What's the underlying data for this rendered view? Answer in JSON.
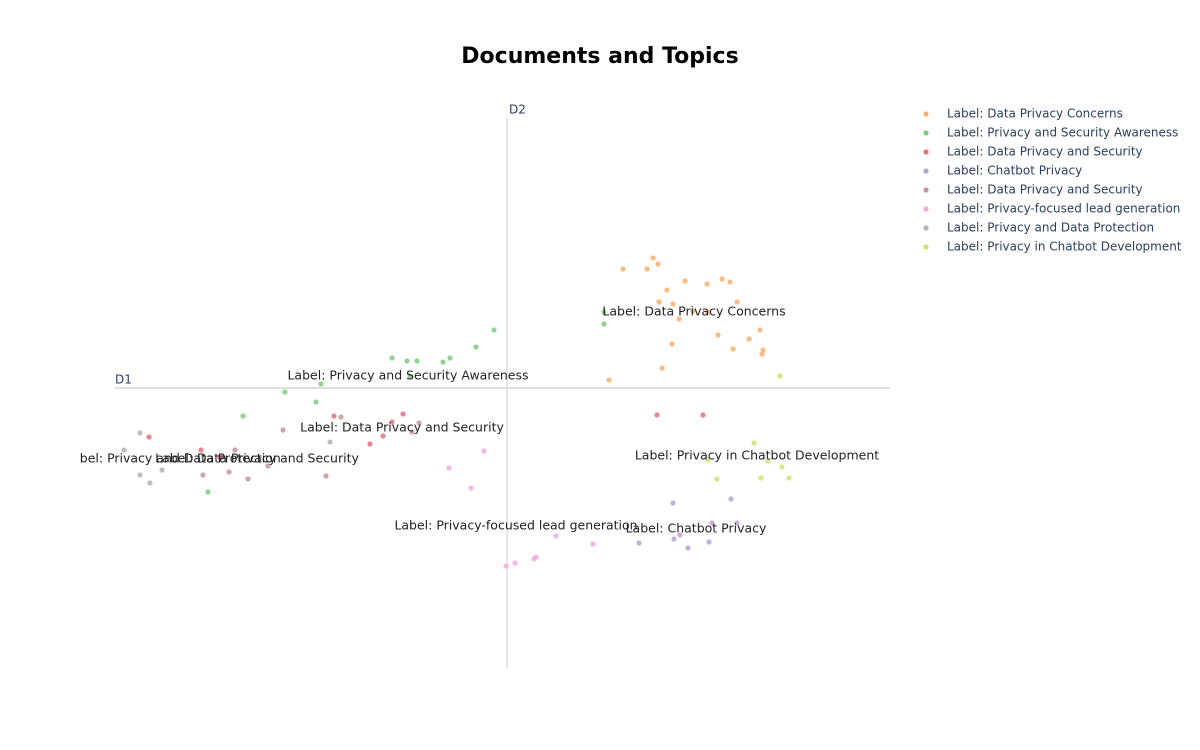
{
  "chart_data": {
    "type": "scatter",
    "title": "Documents and Topics",
    "x_label": "D1",
    "y_label": "D2",
    "xlim": [
      -392,
      383
    ],
    "ylim": [
      -280,
      270
    ],
    "series": [
      {
        "name": "Label: Data Privacy Concerns",
        "color": "#fdae6b",
        "x": [
          116,
          140,
          146,
          151,
          160,
          178,
          200,
          215,
          223,
          230,
          152,
          166,
          172,
          186,
          201,
          211,
          226,
          242,
          253,
          256,
          255,
          165,
          155,
          102
        ],
        "y": [
          119,
          119,
          130,
          124,
          98,
          107,
          104,
          109,
          106,
          86,
          86,
          84,
          69,
          77,
          76,
          53,
          39,
          49,
          58,
          38,
          34,
          44,
          20,
          8
        ]
      },
      {
        "name": "Label: Privacy and Security Awareness",
        "color": "#7fcb7f",
        "x": [
          97,
          97,
          -13,
          -31,
          -57,
          -64,
          -90,
          -100,
          -115,
          -97,
          -186,
          -222,
          -191,
          -264,
          -299
        ],
        "y": [
          76,
          64,
          58,
          41,
          30,
          26,
          27,
          27,
          30,
          12,
          4,
          -4,
          -14,
          -28,
          -104
        ]
      },
      {
        "name": "Label: Data Privacy and Security",
        "color": "#e5707c",
        "x": [
          150,
          196,
          -104,
          -115,
          -124,
          -137,
          -173,
          -358,
          -306,
          -287
        ],
        "y": [
          -27,
          -27,
          -26,
          -34,
          -48,
          -56,
          -28,
          -49,
          -62,
          -69
        ]
      },
      {
        "name": "Label: Chatbot Privacy",
        "color": "#b8a2d8",
        "x": [
          166,
          224,
          205,
          230,
          173,
          167,
          202,
          181,
          132
        ],
        "y": [
          -115,
          -111,
          -135,
          -135,
          -147,
          -151,
          -154,
          -160,
          -155
        ]
      },
      {
        "name": "Label: Data Privacy and Security",
        "color": "#c8949a",
        "x": [
          -166,
          -95,
          -88,
          -224,
          -272,
          -239,
          -278,
          -304,
          -259,
          -181
        ],
        "y": [
          -29,
          -44,
          -35,
          -42,
          -62,
          -78,
          -84,
          -87,
          -91,
          -88
        ]
      },
      {
        "name": "Label: Privacy-focused lead generation",
        "color": "#f2aadc",
        "x": [
          -23,
          -58,
          -36,
          49,
          86,
          29,
          27,
          8,
          -1
        ],
        "y": [
          -63,
          -80,
          -100,
          -148,
          -156,
          -169,
          -171,
          -175,
          -178
        ]
      },
      {
        "name": "Label: Privacy and Data Protection",
        "color": "#b3b3b3",
        "x": [
          -367,
          -177,
          -345,
          -367,
          -357,
          -383
        ],
        "y": [
          -45,
          -54,
          -82,
          -87,
          -95,
          -62
        ]
      },
      {
        "name": "Label: Privacy in Chatbot Development",
        "color": "#d4e06e",
        "x": [
          273,
          247,
          201,
          261,
          275,
          210,
          254,
          282
        ],
        "y": [
          12,
          -55,
          -72,
          -73,
          -79,
          -91,
          -90,
          -90
        ]
      }
    ],
    "annotations": [
      {
        "text": "Label: Data Privacy Concerns",
        "x": 187,
        "y": 76
      },
      {
        "text": "Label: Privacy and Security Awareness",
        "x": -99,
        "y": 12
      },
      {
        "text": "Label: Data Privacy and Security",
        "x": -105,
        "y": -40
      },
      {
        "text": "Label: Privacy in Chatbot Development",
        "x": 250,
        "y": -68
      },
      {
        "text": "Label: Chatbot Privacy",
        "x": 189,
        "y": -141
      },
      {
        "text": "Label: Privacy-focused lead generation",
        "x": 9,
        "y": -138
      },
      {
        "text": "Label: Data Privacy and Security",
        "x": -250,
        "y": -71
      },
      {
        "text": "Label: Privacy and Data Protection",
        "x": -334,
        "y": -71
      }
    ]
  }
}
